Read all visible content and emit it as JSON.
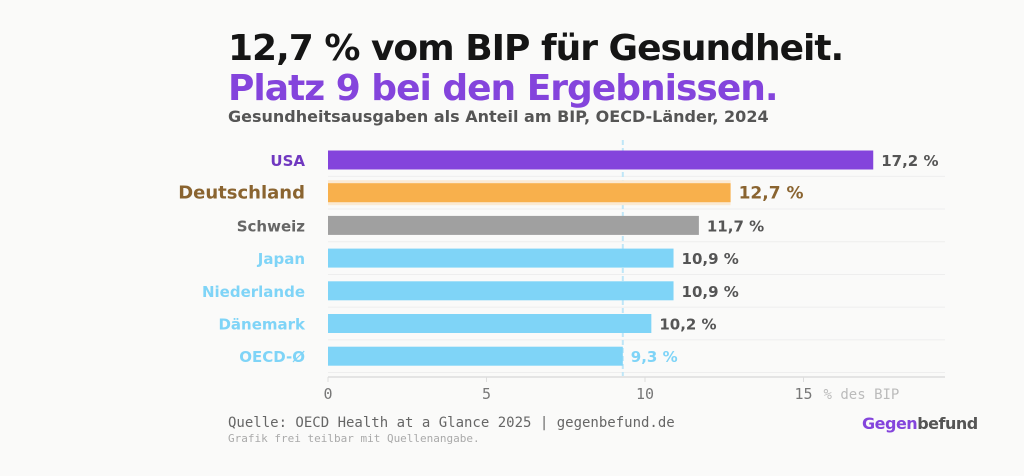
{
  "title_line1": "12,7 % vom BIP für Gesundheit.",
  "title_line2": "Platz 9 bei den Ergebnissen.",
  "subtitle": "Gesundheitsausgaben als Anteil am BIP, OECD-Länder, 2024",
  "source": "Quelle: OECD Health at a Glance 2025 | gegenbefund.de",
  "note": "Grafik frei teilbar mit Quellenangabe.",
  "logo": {
    "part1": "Gegen",
    "part2": "befund"
  },
  "chart_data": {
    "type": "bar",
    "orientation": "horizontal",
    "categories": [
      "USA",
      "Deutschland",
      "Schweiz",
      "Japan",
      "Niederlande",
      "Dänemark",
      "OECD-Ø"
    ],
    "values": [
      17.2,
      12.7,
      11.7,
      10.9,
      10.9,
      10.2,
      9.3
    ],
    "value_labels": [
      "17,2 %",
      "12,7 %",
      "11,7 %",
      "10,9 %",
      "10,9 %",
      "10,2 %",
      "9,3 %"
    ],
    "colors": [
      "#8444dc",
      "#f8b04c",
      "#a0a0a0",
      "#7fd4f7",
      "#7fd4f7",
      "#7fd4f7",
      "#7fd4f7"
    ],
    "label_colors": [
      "#7038c0",
      "#8a6430",
      "#666666",
      "#7fd4f7",
      "#7fd4f7",
      "#7fd4f7",
      "#7fd4f7"
    ],
    "xlabel": "% des BIP",
    "xticks": [
      0,
      5,
      10,
      15
    ],
    "xlim": [
      0,
      19.5
    ],
    "reference_line": {
      "value": 9.3,
      "style": "dashed",
      "color": "#bfe6f7"
    },
    "grid": true
  }
}
